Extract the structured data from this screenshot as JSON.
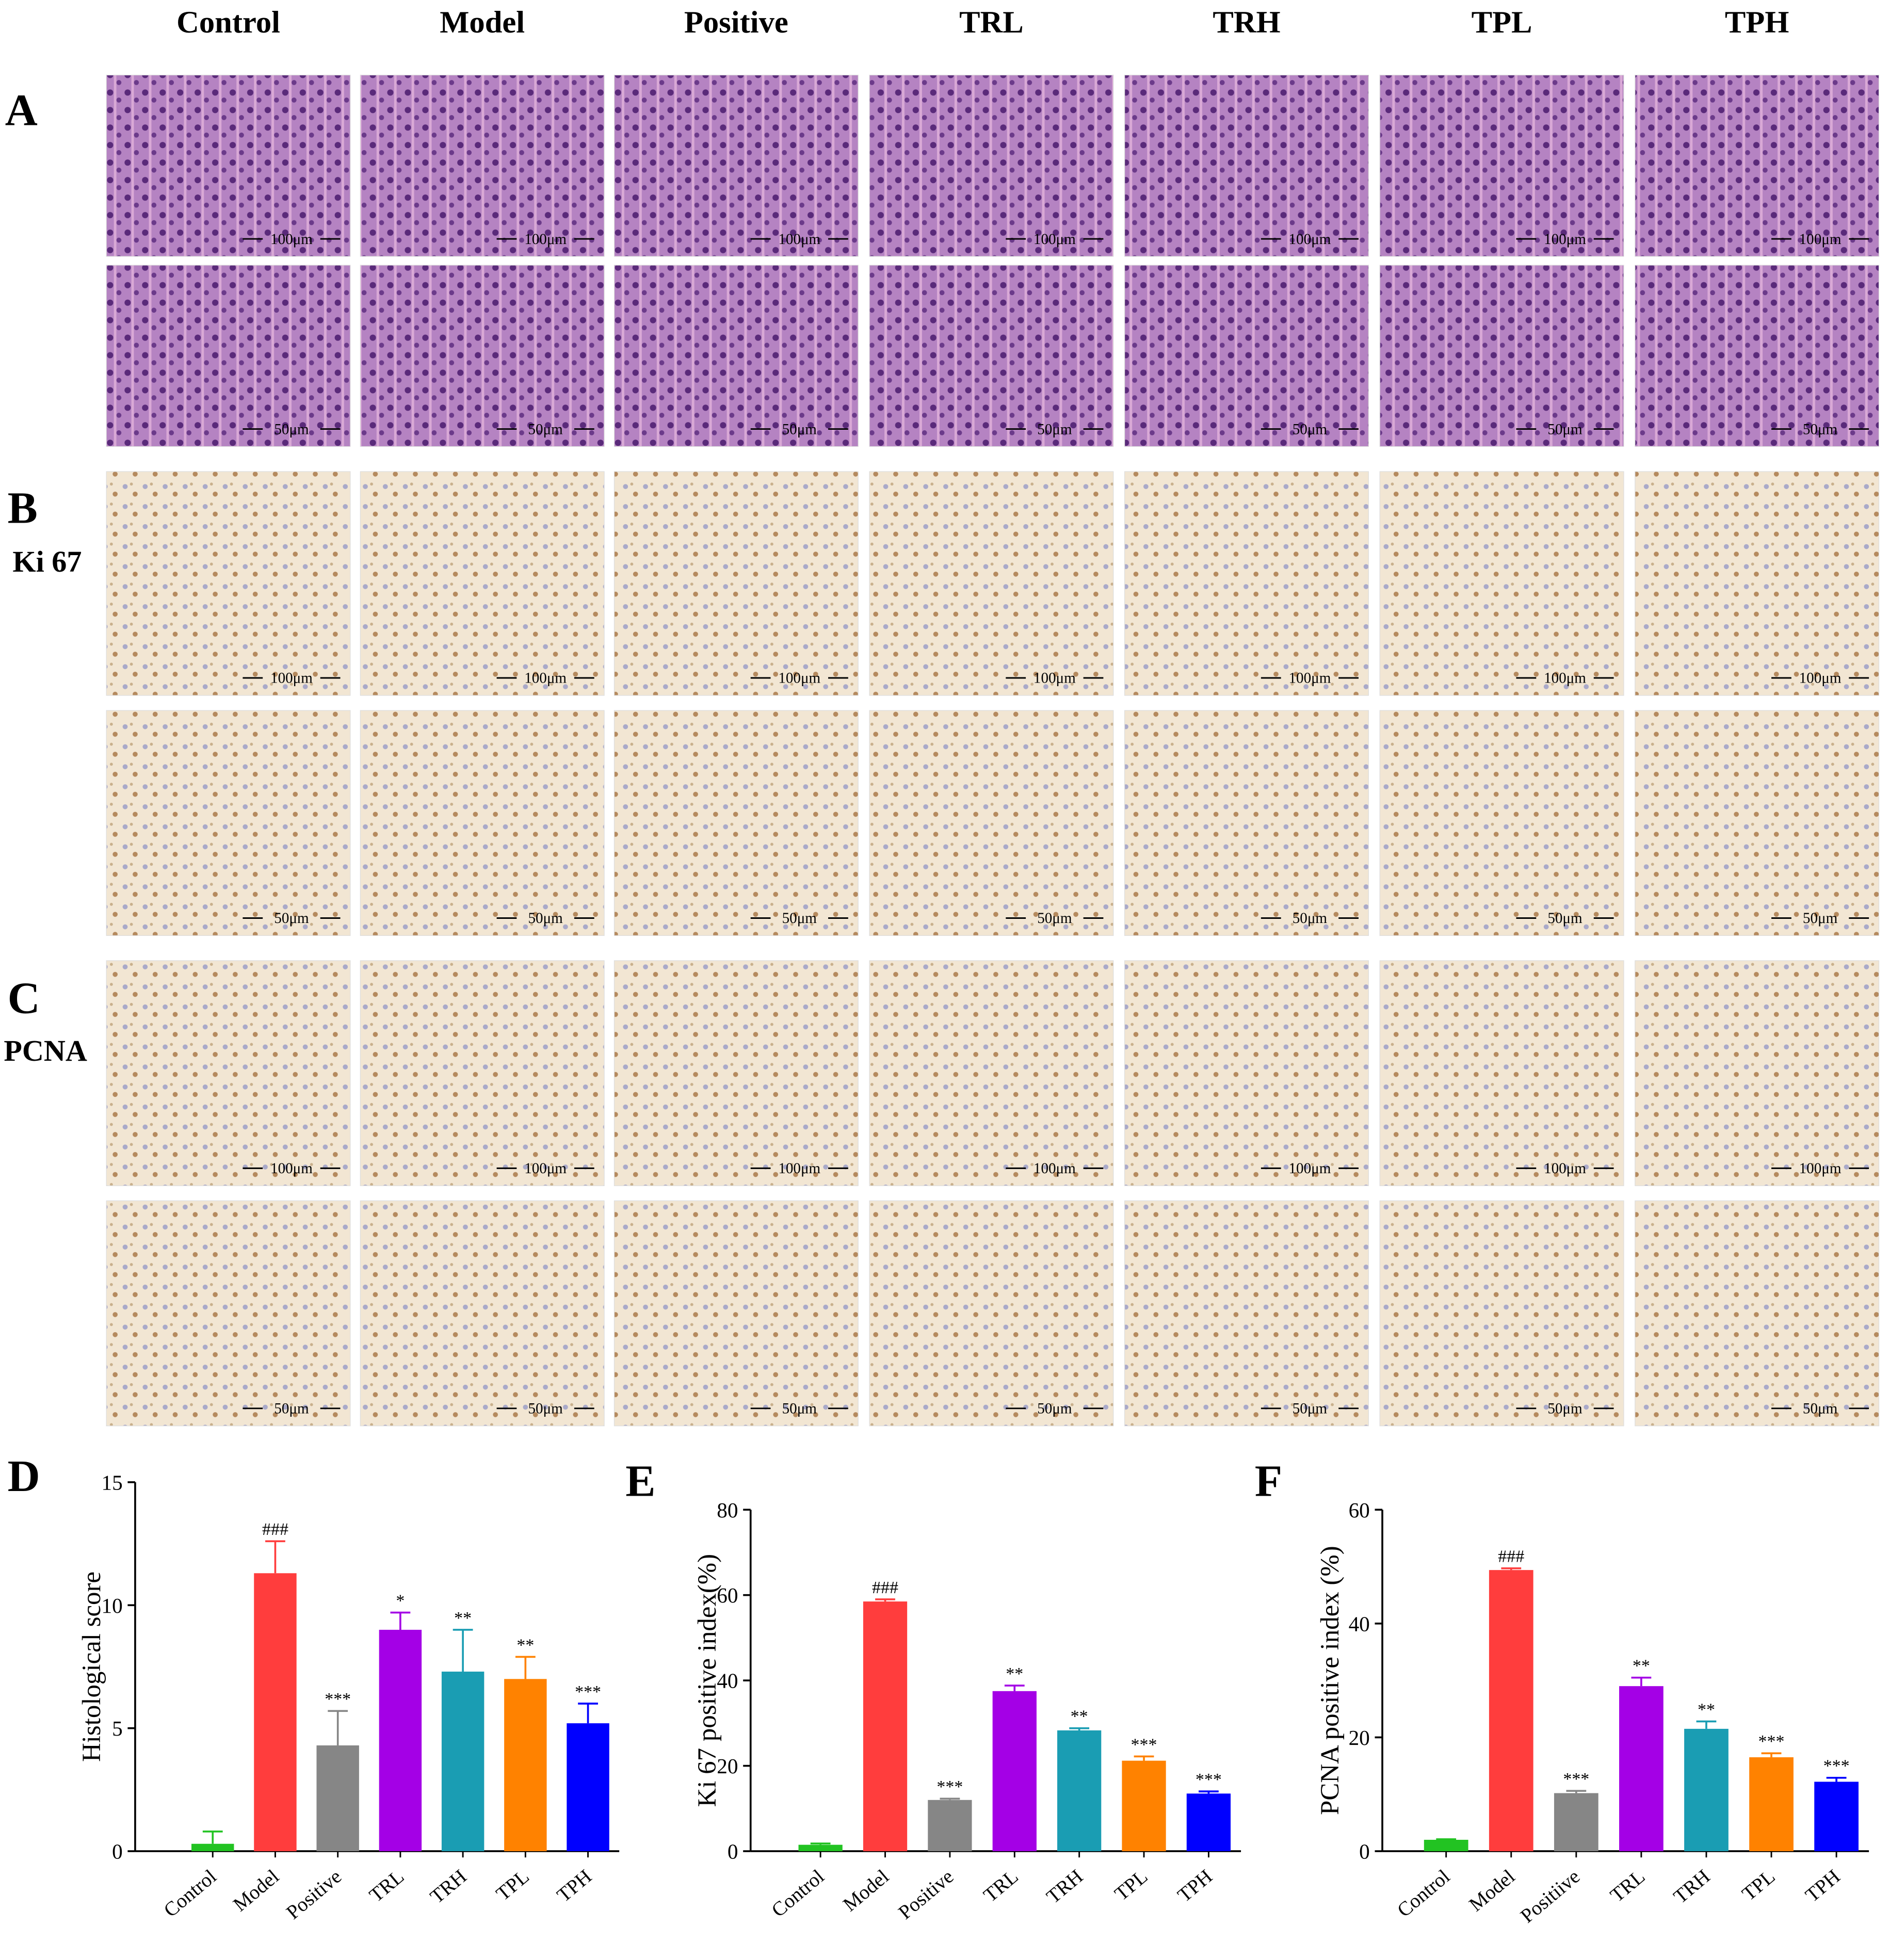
{
  "columns": [
    "Control",
    "Model",
    "Positive",
    "TRL",
    "TRH",
    "TPL",
    "TPH"
  ],
  "panel_labels": {
    "a": "A",
    "b": "B",
    "c": "C",
    "d": "D",
    "e": "E",
    "f": "F"
  },
  "row_labels": {
    "b": "Ki 67",
    "c": "PCNA"
  },
  "scale_labels": [
    "100μm",
    "50μm"
  ],
  "chart_data": [
    {
      "type": "bar",
      "y_label": "Histological score",
      "categories": [
        "Control",
        "Model",
        "Positive",
        "TRL",
        "TRH",
        "TPL",
        "TPH"
      ],
      "values": [
        0.3,
        11.3,
        4.3,
        9.0,
        7.3,
        7.0,
        5.2
      ],
      "errors": [
        0.5,
        1.3,
        1.4,
        0.7,
        1.7,
        0.9,
        0.8
      ],
      "annotations": [
        null,
        "###",
        "***",
        "*",
        "**",
        "**",
        "***"
      ],
      "colors": [
        "#22c322",
        "#ff3d3d",
        "#868686",
        "#a400e6",
        "#1a9db3",
        "#ff8200",
        "#0000ff"
      ],
      "ylim": [
        0,
        15
      ],
      "yticks": [
        0,
        5,
        10,
        15
      ]
    },
    {
      "type": "bar",
      "y_label": "Ki 67 positive index(%)",
      "categories": [
        "Control",
        "Model",
        "Positive",
        "TRL",
        "TRH",
        "TPL",
        "TPH"
      ],
      "values": [
        1.5,
        58.5,
        12.0,
        37.5,
        28.3,
        21.2,
        13.5
      ],
      "errors": [
        0.3,
        0.5,
        0.3,
        1.3,
        0.5,
        1.0,
        0.5
      ],
      "annotations": [
        null,
        "###",
        "***",
        "**",
        "**",
        "***",
        "***"
      ],
      "colors": [
        "#22c322",
        "#ff3d3d",
        "#868686",
        "#a400e6",
        "#1a9db3",
        "#ff8200",
        "#0000ff"
      ],
      "ylim": [
        0,
        80
      ],
      "yticks": [
        0,
        20,
        40,
        60,
        80
      ]
    },
    {
      "type": "bar",
      "y_label": "PCNA positive index (%)",
      "categories": [
        "Control",
        "Model",
        "Positiive",
        "TRL",
        "TRH",
        "TPL",
        "TPH"
      ],
      "values": [
        2.0,
        49.4,
        10.2,
        29.0,
        21.5,
        16.5,
        12.2
      ],
      "errors": [
        0.1,
        0.3,
        0.4,
        1.5,
        1.3,
        0.7,
        0.7
      ],
      "annotations": [
        null,
        "###",
        "***",
        "**",
        "**",
        "***",
        "***"
      ],
      "colors": [
        "#22c322",
        "#ff3d3d",
        "#868686",
        "#a400e6",
        "#1a9db3",
        "#ff8200",
        "#0000ff"
      ],
      "ylim": [
        0,
        60
      ],
      "yticks": [
        0,
        20,
        40,
        60
      ]
    }
  ]
}
